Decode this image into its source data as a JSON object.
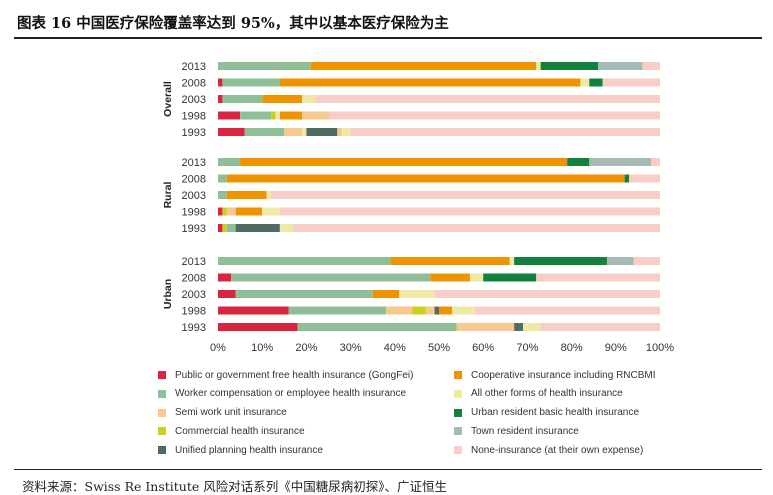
{
  "title": "图表 16  中国医疗保险覆盖率达到 95%，其中以基本医疗保险为主",
  "source": "资料来源：Swiss Re Institute  风险对话系列《中国糖尿病初探》、广证恒生",
  "chart_data": {
    "type": "bar",
    "orientation": "horizontal",
    "stacked": true,
    "xlim": [
      0,
      100
    ],
    "x_ticks": [
      "0%",
      "10%",
      "20%",
      "30%",
      "40%",
      "50%",
      "60%",
      "70%",
      "80%",
      "90%",
      "100%"
    ],
    "legend_placement": "bottom",
    "components": [
      {
        "key": "gov",
        "name": "Public or government free health insurance (GongFei)",
        "color": "#d7263d"
      },
      {
        "key": "coop",
        "name": "Cooperative insurance including RNCBMI",
        "color": "#ee9400"
      },
      {
        "key": "worker",
        "name": "Worker compensation or employee health insurance",
        "color": "#8fbf96"
      },
      {
        "key": "other",
        "name": "All other forms of health insurance",
        "color": "#eeeaa6"
      },
      {
        "key": "semi",
        "name": "Semi work unit insurance",
        "color": "#f7c98f"
      },
      {
        "key": "urban",
        "name": "Urban resident basic health insurance",
        "color": "#13813e"
      },
      {
        "key": "commercial",
        "name": "Commercial health insurance",
        "color": "#c9d11c"
      },
      {
        "key": "town",
        "name": "Town resident insurance",
        "color": "#a4bab2"
      },
      {
        "key": "planning",
        "name": "Unified planning health insurance",
        "color": "#4f6b66"
      },
      {
        "key": "none",
        "name": "None-insurance (at their own expense)",
        "color": "#f7cdc6"
      }
    ],
    "groups": [
      {
        "name": "Overall",
        "bars": [
          {
            "label": "2013",
            "segments": [
              [
                "worker",
                21
              ],
              [
                "coop",
                51
              ],
              [
                "other",
                1
              ],
              [
                "urban",
                13
              ],
              [
                "town",
                10
              ],
              [
                "none",
                4
              ]
            ]
          },
          {
            "label": "2008",
            "segments": [
              [
                "gov",
                1
              ],
              [
                "worker",
                13
              ],
              [
                "coop",
                68
              ],
              [
                "other",
                2
              ],
              [
                "urban",
                3
              ],
              [
                "none",
                13
              ]
            ]
          },
          {
            "label": "2003",
            "segments": [
              [
                "gov",
                1
              ],
              [
                "worker",
                9
              ],
              [
                "coop",
                9
              ],
              [
                "other",
                3
              ],
              [
                "none",
                78
              ]
            ]
          },
          {
            "label": "1998",
            "segments": [
              [
                "gov",
                5
              ],
              [
                "worker",
                7
              ],
              [
                "commercial",
                1
              ],
              [
                "other",
                1
              ],
              [
                "coop",
                5
              ],
              [
                "semi",
                6
              ],
              [
                "none",
                75
              ]
            ]
          },
          {
            "label": "1993",
            "segments": [
              [
                "gov",
                6
              ],
              [
                "worker",
                9
              ],
              [
                "semi",
                4
              ],
              [
                "other",
                1
              ],
              [
                "planning",
                7
              ],
              [
                "semi",
                1
              ],
              [
                "other",
                2
              ],
              [
                "none",
                70
              ]
            ]
          }
        ]
      },
      {
        "name": "Rural",
        "bars": [
          {
            "label": "2013",
            "segments": [
              [
                "worker",
                5
              ],
              [
                "coop",
                74
              ],
              [
                "urban",
                5
              ],
              [
                "town",
                14
              ],
              [
                "none",
                2
              ]
            ]
          },
          {
            "label": "2008",
            "segments": [
              [
                "worker",
                2
              ],
              [
                "coop",
                90
              ],
              [
                "urban",
                1
              ],
              [
                "none",
                7
              ]
            ]
          },
          {
            "label": "2003",
            "segments": [
              [
                "worker",
                2
              ],
              [
                "coop",
                9
              ],
              [
                "other",
                1
              ],
              [
                "none",
                88
              ]
            ]
          },
          {
            "label": "1998",
            "segments": [
              [
                "gov",
                1
              ],
              [
                "commercial",
                1
              ],
              [
                "semi",
                2
              ],
              [
                "coop",
                6
              ],
              [
                "other",
                4
              ],
              [
                "none",
                86
              ]
            ]
          },
          {
            "label": "1993",
            "segments": [
              [
                "gov",
                1
              ],
              [
                "commercial",
                1
              ],
              [
                "worker",
                2
              ],
              [
                "planning",
                10
              ],
              [
                "other",
                3
              ],
              [
                "none",
                83
              ]
            ]
          }
        ]
      },
      {
        "name": "Urban",
        "bars": [
          {
            "label": "2013",
            "segments": [
              [
                "worker",
                39
              ],
              [
                "coop",
                27
              ],
              [
                "other",
                1
              ],
              [
                "urban",
                21
              ],
              [
                "town",
                6
              ],
              [
                "none",
                6
              ]
            ]
          },
          {
            "label": "2008",
            "segments": [
              [
                "gov",
                3
              ],
              [
                "worker",
                45
              ],
              [
                "coop",
                9
              ],
              [
                "other",
                3
              ],
              [
                "urban",
                12
              ],
              [
                "none",
                28
              ]
            ]
          },
          {
            "label": "2003",
            "segments": [
              [
                "gov",
                4
              ],
              [
                "worker",
                31
              ],
              [
                "coop",
                6
              ],
              [
                "other",
                8
              ],
              [
                "none",
                51
              ]
            ]
          },
          {
            "label": "1998",
            "segments": [
              [
                "gov",
                16
              ],
              [
                "worker",
                22
              ],
              [
                "semi",
                6
              ],
              [
                "commercial",
                3
              ],
              [
                "semi",
                2
              ],
              [
                "planning",
                1
              ],
              [
                "coop",
                3
              ],
              [
                "other",
                5
              ],
              [
                "none",
                42
              ]
            ]
          },
          {
            "label": "1993",
            "segments": [
              [
                "gov",
                18
              ],
              [
                "worker",
                36
              ],
              [
                "semi",
                13
              ],
              [
                "planning",
                2
              ],
              [
                "other",
                4
              ],
              [
                "none",
                27
              ]
            ]
          }
        ]
      }
    ]
  }
}
